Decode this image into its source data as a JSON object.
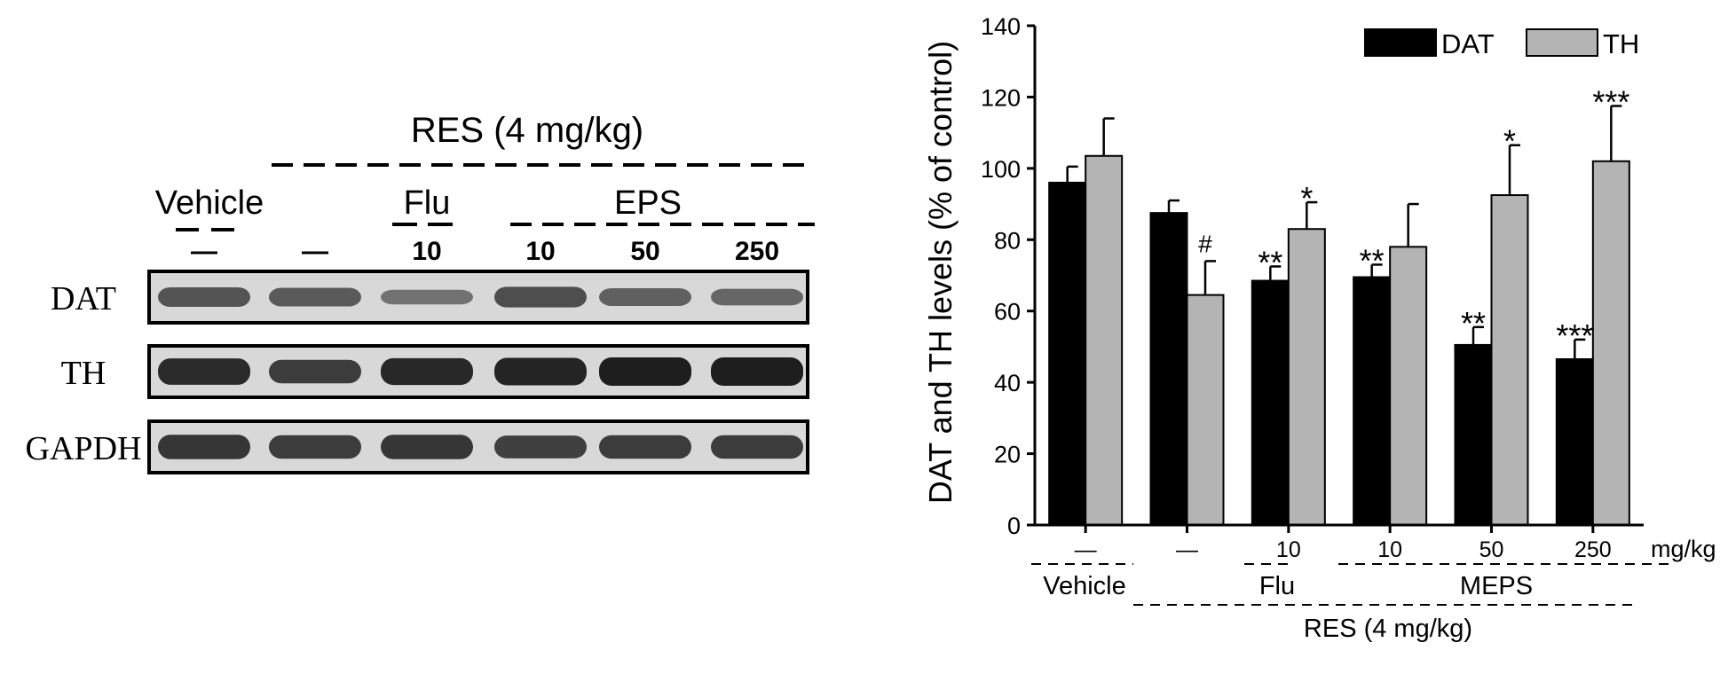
{
  "western_blot": {
    "group_label": "RES (4 mg/kg)",
    "vehicle_label": "Vehicle",
    "flu_label": "Flu",
    "eps_label": "EPS",
    "lane_doses": [
      "—",
      "—",
      "10",
      "10",
      "50",
      "250"
    ],
    "blots": [
      {
        "name": "DAT",
        "intensity": [
          0.55,
          0.5,
          0.3,
          0.6,
          0.45,
          0.4
        ]
      },
      {
        "name": "TH",
        "intensity": [
          0.9,
          0.75,
          0.92,
          0.95,
          1.0,
          1.0
        ]
      },
      {
        "name": "GAPDH",
        "intensity": [
          0.8,
          0.75,
          0.8,
          0.72,
          0.75,
          0.75
        ]
      }
    ]
  },
  "chart_data": {
    "type": "bar",
    "categories": [
      "—",
      "—",
      "10",
      "10",
      "50",
      "250"
    ],
    "unit_label": "mg/kg",
    "group_labels": {
      "vehicle": "Vehicle",
      "flu": "Flu",
      "meps": "MEPS",
      "res": "RES (4 mg/kg)"
    },
    "series": [
      {
        "name": "DAT",
        "color": "#000000",
        "values": [
          96,
          87.5,
          68.5,
          69.5,
          50.5,
          46.5
        ],
        "errors": [
          4.5,
          3.5,
          4,
          3.5,
          5,
          5.5
        ],
        "annotations": [
          "",
          "",
          "**",
          "**",
          "**",
          "***"
        ]
      },
      {
        "name": "TH",
        "color": "#b4b4b4",
        "values": [
          103.5,
          64.5,
          83,
          78,
          92.5,
          102
        ],
        "errors": [
          10.5,
          9.5,
          7.5,
          12,
          14,
          15.5
        ],
        "annotations": [
          "",
          "#",
          "*",
          "",
          "*",
          "***"
        ]
      }
    ],
    "ylabel": "DAT and TH levels (% of control)",
    "xlabel": "",
    "ylim": [
      0,
      140
    ],
    "yticks": [
      0,
      20,
      40,
      60,
      80,
      100,
      120,
      140
    ],
    "legend_position": "top-right",
    "grid": false
  }
}
